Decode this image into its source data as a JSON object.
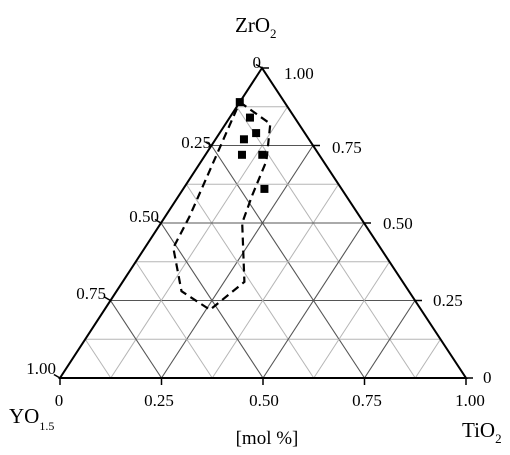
{
  "chart_data": {
    "type": "scatter",
    "subtype": "ternary",
    "corner_labels": {
      "top": {
        "main": "ZrO",
        "sub": "2"
      },
      "left": {
        "main": "YO",
        "sub": "1.5"
      },
      "right": {
        "main": "TiO",
        "sub": "2"
      }
    },
    "axis_caption": "[mol %]",
    "bottom_ticks": [
      "0",
      "0.25",
      "0.50",
      "0.75",
      "1.00"
    ],
    "left_ticks": [
      "0",
      "0.25",
      "0.50",
      "0.75",
      "1.00"
    ],
    "right_ticks": [
      "1.00",
      "0.75",
      "0.50",
      "0.25",
      "0"
    ],
    "grid": true,
    "grid_step": 0.125,
    "points": [
      {
        "ZrO2": 0.89,
        "YO1_5": 0.11,
        "TiO2": 0.0
      },
      {
        "ZrO2": 0.84,
        "YO1_5": 0.11,
        "TiO2": 0.05
      },
      {
        "ZrO2": 0.79,
        "YO1_5": 0.12,
        "TiO2": 0.09
      },
      {
        "ZrO2": 0.77,
        "YO1_5": 0.16,
        "TiO2": 0.07
      },
      {
        "ZrO2": 0.72,
        "YO1_5": 0.19,
        "TiO2": 0.09
      },
      {
        "ZrO2": 0.72,
        "YO1_5": 0.14,
        "TiO2": 0.14
      },
      {
        "ZrO2": 0.61,
        "YO1_5": 0.19,
        "TiO2": 0.2
      }
    ],
    "region_boundary": [
      {
        "ZrO2": 0.89,
        "YO1_5": 0.11,
        "TiO2": 0.0
      },
      {
        "ZrO2": 0.82,
        "YO1_5": 0.07,
        "TiO2": 0.11
      },
      {
        "ZrO2": 0.7,
        "YO1_5": 0.14,
        "TiO2": 0.16
      },
      {
        "ZrO2": 0.59,
        "YO1_5": 0.23,
        "TiO2": 0.18
      },
      {
        "ZrO2": 0.5,
        "YO1_5": 0.3,
        "TiO2": 0.2
      },
      {
        "ZrO2": 0.31,
        "YO1_5": 0.39,
        "TiO2": 0.3
      },
      {
        "ZrO2": 0.22,
        "YO1_5": 0.52,
        "TiO2": 0.26
      },
      {
        "ZrO2": 0.28,
        "YO1_5": 0.56,
        "TiO2": 0.16
      },
      {
        "ZrO2": 0.42,
        "YO1_5": 0.51,
        "TiO2": 0.07
      },
      {
        "ZrO2": 0.52,
        "YO1_5": 0.42,
        "TiO2": 0.06
      }
    ]
  }
}
